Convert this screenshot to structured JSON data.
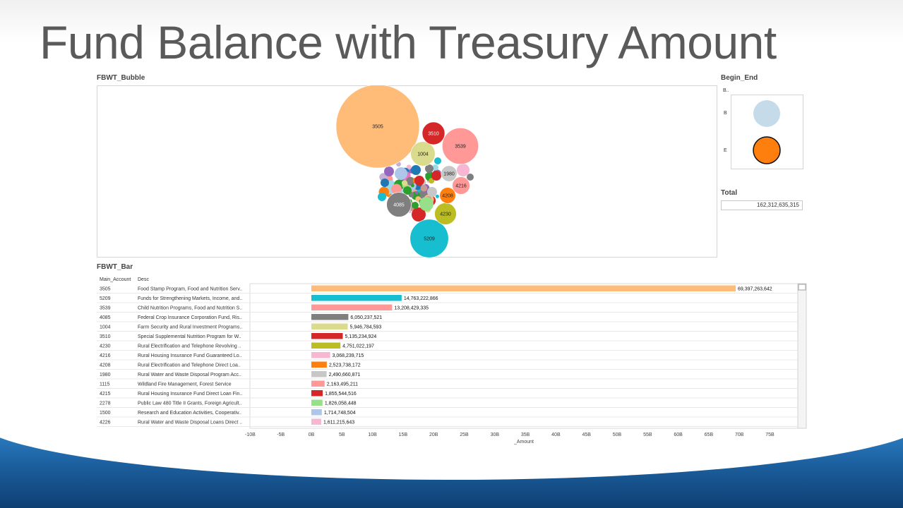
{
  "slide": {
    "title": "Fund Balance with Treasury Amount"
  },
  "sheets": {
    "bubble_title": "FBWT_Bubble",
    "legend_title": "Begin_End",
    "legend_header": "B..",
    "legend_items": [
      {
        "label": "B",
        "color": "#c6dbea"
      },
      {
        "label": "E",
        "color": "#ff7f0e"
      }
    ],
    "total_title": "Total",
    "total_value": "162,312,635,315",
    "bar_title": "FBWT_Bar",
    "col_account": "Main_Account",
    "col_desc": "Desc"
  },
  "colors": {
    "palette": [
      "#ffbb78",
      "#17becf",
      "#ff9896",
      "#7f7f7f",
      "#dbdb8d",
      "#d62728",
      "#bcbd22",
      "#f7b6d2",
      "#ff7f0e",
      "#c7c7c7",
      "#98df8a",
      "#aec7e8",
      "#9467bd",
      "#1f77b4",
      "#2ca02c",
      "#e377c2",
      "#c5b0d5",
      "#8c564b",
      "#9edae5",
      "#c49c94"
    ]
  },
  "chart_data": [
    {
      "type": "scatter",
      "subtype": "packed-bubble",
      "title": "FBWT_Bubble",
      "labeled_bubbles": [
        {
          "label": "3505",
          "value": 69397263642,
          "color": "#ffbb78"
        },
        {
          "label": "5209",
          "value": 14763222866,
          "color": "#17becf"
        },
        {
          "label": "3539",
          "value": 13208429335,
          "color": "#ff9896"
        },
        {
          "label": "4085",
          "value": 6050237521,
          "color": "#7f7f7f"
        },
        {
          "label": "1004",
          "value": 5946784593,
          "color": "#dbdb8d"
        },
        {
          "label": "3510",
          "value": 5135234924,
          "color": "#d62728"
        },
        {
          "label": "4230",
          "value": 4751022197,
          "color": "#bcbd22"
        },
        {
          "label": "4216",
          "value": 3068239715,
          "color": "#ff9896"
        },
        {
          "label": "4208",
          "value": 2523738172,
          "color": "#ff7f0e"
        },
        {
          "label": "1980",
          "value": 2490660871,
          "color": "#c7c7c7"
        }
      ]
    },
    {
      "type": "bar",
      "orientation": "horizontal",
      "title": "FBWT_Bar",
      "xlabel": "_Amount",
      "xlim": [
        -10,
        80
      ],
      "xticks": [
        "-10B",
        "-5B",
        "0B",
        "5B",
        "10B",
        "15B",
        "20B",
        "25B",
        "30B",
        "35B",
        "40B",
        "45B",
        "50B",
        "55B",
        "60B",
        "65B",
        "70B",
        "75B"
      ],
      "rows": [
        {
          "account": "3505",
          "desc": "Food Stamp Program, Food and Nutrition Serv..",
          "value": 69397263642,
          "label": "69,397,263,642",
          "color": "#ffbb78"
        },
        {
          "account": "5209",
          "desc": "Funds for Strengthening Markets, Income, and..",
          "value": 14763222866,
          "label": "14,763,222,866",
          "color": "#17becf"
        },
        {
          "account": "3539",
          "desc": "Child Nutrition Programs, Food and Nutrition S..",
          "value": 13208429335,
          "label": "13,208,429,335",
          "color": "#ff9896"
        },
        {
          "account": "4085",
          "desc": "Federal Crop Insurance Corporation Fund, Ris..",
          "value": 6050237521,
          "label": "6,050,237,521",
          "color": "#7f7f7f"
        },
        {
          "account": "1004",
          "desc": "Farm Security and Rural Investment Programs..",
          "value": 5946784593,
          "label": "5,946,784,593",
          "color": "#dbdb8d"
        },
        {
          "account": "3510",
          "desc": "Special Supplemental Nutrition Program for W..",
          "value": 5135234924,
          "label": "5,135,234,924",
          "color": "#d62728"
        },
        {
          "account": "4230",
          "desc": "Rural Electrification and Telephone Revolving ..",
          "value": 4751022197,
          "label": "4,751,022,197",
          "color": "#bcbd22"
        },
        {
          "account": "4216",
          "desc": "Rural Housing Insurance Fund Guaranteed Lo..",
          "value": 3068239715,
          "label": "3,068,239,715",
          "color": "#f7b6d2"
        },
        {
          "account": "4208",
          "desc": "Rural Electrification and Telephone Direct Loa..",
          "value": 2523738172,
          "label": "2,523,738,172",
          "color": "#ff7f0e"
        },
        {
          "account": "1980",
          "desc": "Rural Water and Waste Disposal Program Acc..",
          "value": 2490660871,
          "label": "2,490,660,871",
          "color": "#c7c7c7"
        },
        {
          "account": "1115",
          "desc": "Wildland Fire Management, Forest Service",
          "value": 2163495211,
          "label": "2,163,495,211",
          "color": "#ff9896"
        },
        {
          "account": "4215",
          "desc": "Rural Housing Insurance Fund Direct Loan Fin..",
          "value": 1855544516,
          "label": "1,855,544,516",
          "color": "#d62728"
        },
        {
          "account": "2278",
          "desc": "Public Law 480 Title II Grants, Foreign Agricult..",
          "value": 1826058448,
          "label": "1,826,058,448",
          "color": "#98df8a"
        },
        {
          "account": "1500",
          "desc": "Research and Education Activities, Cooperativ..",
          "value": 1714748504,
          "label": "1,714,748,504",
          "color": "#aec7e8"
        },
        {
          "account": "4226",
          "desc": "Rural Water and Waste Disposal Loans Direct ..",
          "value": 1611215643,
          "label": "1,611,215,643",
          "color": "#f7b6d2"
        }
      ]
    }
  ]
}
